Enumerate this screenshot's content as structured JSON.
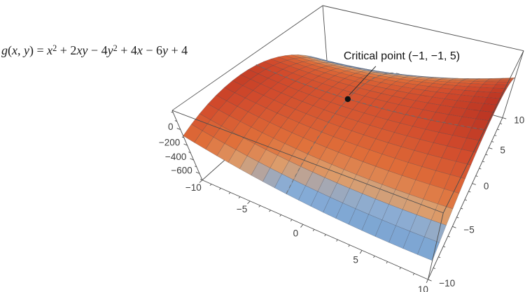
{
  "figure": {
    "equation_label": "g(x, y) = x² + 2xy − 4y² + 4x − 6y + 4",
    "equation_segments": [
      {
        "text": "g",
        "italic": true
      },
      {
        "text": "(",
        "italic": false
      },
      {
        "text": "x",
        "italic": true
      },
      {
        "text": ", ",
        "italic": false
      },
      {
        "text": "y",
        "italic": true
      },
      {
        "text": ") = ",
        "italic": false
      },
      {
        "text": "x",
        "italic": true
      },
      {
        "text": "2",
        "sup": true
      },
      {
        "text": " + 2",
        "italic": false
      },
      {
        "text": "xy",
        "italic": true
      },
      {
        "text": " − 4",
        "italic": false
      },
      {
        "text": "y",
        "italic": true
      },
      {
        "text": "2",
        "sup": true
      },
      {
        "text": " + 4",
        "italic": false
      },
      {
        "text": "x",
        "italic": true
      },
      {
        "text": " − 6",
        "italic": false
      },
      {
        "text": "y",
        "italic": true
      },
      {
        "text": " + 4",
        "italic": false
      }
    ],
    "annotation_label": "Critical point (−1, −1, 5)"
  },
  "chart_data": {
    "type": "surface",
    "title": "",
    "function": "g(x, y) = x^2 + 2xy - 4y^2 + 4x - 6y + 4",
    "coefficients": {
      "x2": 1,
      "xy": 2,
      "y2": -4,
      "x1": 4,
      "y1": -6,
      "c": 4
    },
    "x_range": [
      -10,
      10
    ],
    "y_range": [
      -10,
      10
    ],
    "z_range": [
      -700,
      225
    ],
    "x_ticks": {
      "values": [
        -10,
        -5,
        0,
        5,
        10
      ],
      "labels": [
        "−10",
        "−5",
        "0",
        "5",
        "10"
      ]
    },
    "y_ticks": {
      "values": [
        -10,
        -5,
        0,
        5,
        10
      ],
      "labels": [
        "−10",
        "−5",
        "0",
        "5",
        "10"
      ]
    },
    "z_ticks": {
      "values": [
        0,
        -200,
        -400,
        -600
      ],
      "labels": [
        "0",
        "−200",
        "−400",
        "−600"
      ]
    },
    "critical_point": {
      "x": -1,
      "y": -1,
      "z": 5,
      "label": "Critical point (−1, −1, 5)"
    },
    "mesh_divisions": 20,
    "grid": true,
    "legend": "none",
    "colors": {
      "background": "#ffffff",
      "surface_low": "#5e91c6",
      "surface_high": "#b93322",
      "surface_stops": [
        [
          0,
          "#5e91c6"
        ],
        [
          0.42,
          "#88add7"
        ],
        [
          0.53,
          "#dc9d6c"
        ],
        [
          0.65,
          "#e0703a"
        ],
        [
          0.85,
          "#d14a2c"
        ],
        [
          1,
          "#b93322"
        ]
      ],
      "mesh_line": "rgba(55,55,65,0.35)",
      "box_edge": "#4d4d4d",
      "tick_text": "#3c3c3c",
      "dashed_line": "rgba(110,110,110,0.85)",
      "point": "#111111"
    },
    "view": "perspective from front-left, elevated"
  }
}
